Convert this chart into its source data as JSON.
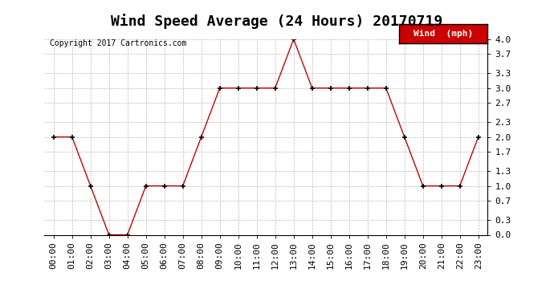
{
  "title": "Wind Speed Average (24 Hours) 20170719",
  "copyright": "Copyright 2017 Cartronics.com",
  "legend_label": "Wind  (mph)",
  "hours": [
    "00:00",
    "01:00",
    "02:00",
    "03:00",
    "04:00",
    "05:00",
    "06:00",
    "07:00",
    "08:00",
    "09:00",
    "10:00",
    "11:00",
    "12:00",
    "13:00",
    "14:00",
    "15:00",
    "16:00",
    "17:00",
    "18:00",
    "19:00",
    "20:00",
    "21:00",
    "22:00",
    "23:00"
  ],
  "values": [
    2.0,
    2.0,
    1.0,
    0.0,
    0.0,
    1.0,
    1.0,
    1.0,
    2.0,
    3.0,
    3.0,
    3.0,
    3.0,
    4.0,
    3.0,
    3.0,
    3.0,
    3.0,
    3.0,
    2.0,
    1.0,
    1.0,
    1.0,
    2.0
  ],
  "line_color": "#cc0000",
  "marker_color": "#000000",
  "bg_color": "#ffffff",
  "grid_color": "#bbbbbb",
  "ylim": [
    0.0,
    4.0
  ],
  "yticks": [
    0.0,
    0.3,
    0.7,
    1.0,
    1.3,
    1.7,
    2.0,
    2.3,
    2.7,
    3.0,
    3.3,
    3.7,
    4.0
  ],
  "ytick_labels": [
    "0.0",
    "0.3",
    "0.7",
    "1.0",
    "1.3",
    "1.7",
    "2.0",
    "2.3",
    "2.7",
    "3.0",
    "3.3",
    "3.7",
    "4.0"
  ],
  "legend_bg": "#cc0000",
  "legend_text_color": "#ffffff",
  "title_fontsize": 13,
  "label_fontsize": 8,
  "tick_fontsize": 8,
  "copyright_fontsize": 7
}
